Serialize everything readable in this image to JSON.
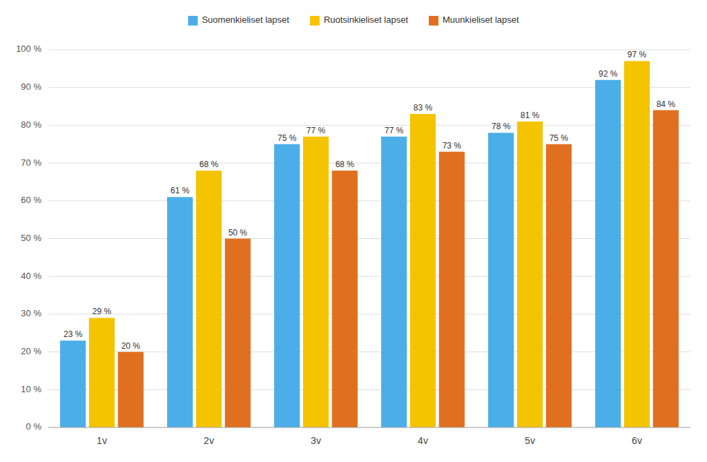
{
  "chart_data": {
    "type": "bar",
    "categories": [
      "1v",
      "2v",
      "3v",
      "4v",
      "5v",
      "6v"
    ],
    "series": [
      {
        "name": "Suomenkieliset lapset",
        "color": "#4BAEE8",
        "values": [
          23,
          61,
          75,
          77,
          78,
          92
        ],
        "value_labels": [
          "23 %",
          "61 %",
          "75 %",
          "77 %",
          "78 %",
          "92 %"
        ]
      },
      {
        "name": "Ruotsinkieliset lapset",
        "color": "#F5C400",
        "values": [
          29,
          68,
          77,
          83,
          81,
          97
        ],
        "value_labels": [
          "29 %",
          "68 %",
          "77 %",
          "83 %",
          "81 %",
          "97 %"
        ]
      },
      {
        "name": "Muunkieliset lapset",
        "color": "#E07020",
        "values": [
          20,
          50,
          68,
          73,
          75,
          84
        ],
        "value_labels": [
          "20 %",
          "50 %",
          "68 %",
          "73 %",
          "75 %",
          "84 %"
        ]
      }
    ],
    "ylim": [
      0,
      100
    ],
    "yticks": [
      {
        "value": 0,
        "label": "0 %"
      },
      {
        "value": 10,
        "label": "10 %"
      },
      {
        "value": 20,
        "label": "20 %"
      },
      {
        "value": 30,
        "label": "30 %"
      },
      {
        "value": 40,
        "label": "40 %"
      },
      {
        "value": 50,
        "label": "50 %"
      },
      {
        "value": 60,
        "label": "60 %"
      },
      {
        "value": 70,
        "label": "70 %"
      },
      {
        "value": 80,
        "label": "80 %"
      },
      {
        "value": 90,
        "label": "90 %"
      },
      {
        "value": 100,
        "label": "100 %"
      }
    ],
    "grid": true,
    "legend": "top",
    "data_labels": true
  }
}
